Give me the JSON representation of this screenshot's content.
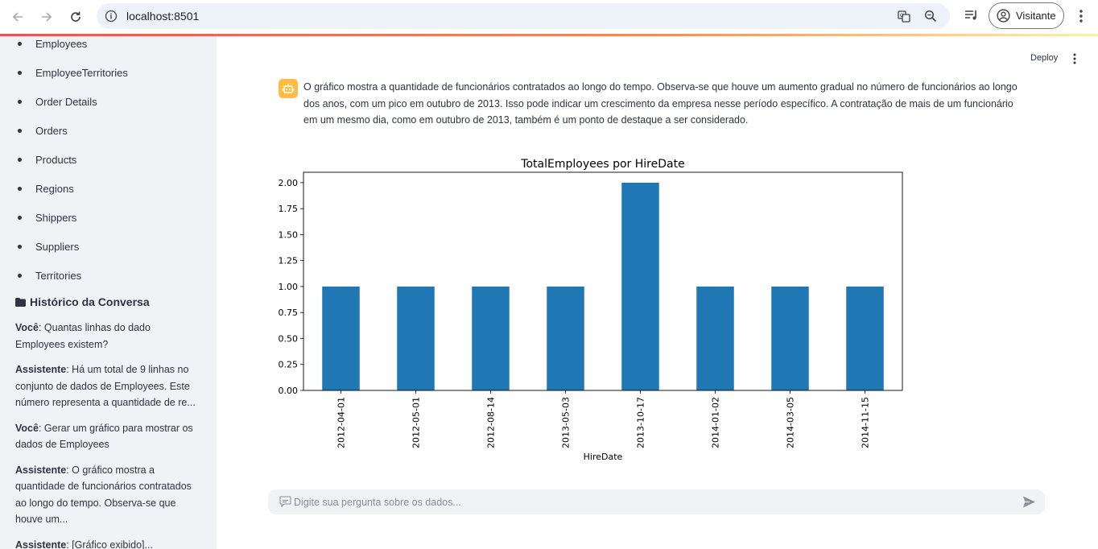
{
  "browser": {
    "url": "localhost:8501",
    "profile_label": "Visitante"
  },
  "sidebar": {
    "tables": [
      "Employees",
      "EmployeeTerritories",
      "Order Details",
      "Orders",
      "Products",
      "Regions",
      "Shippers",
      "Suppliers",
      "Territories"
    ],
    "history_title": "Histórico da Conversa",
    "history": [
      {
        "speaker": "Você",
        "text": ": Quantas linhas do dado Employees existem?"
      },
      {
        "speaker": "Assistente",
        "text": ": Há um total de 9 linhas no conjunto de dados de Employees. Este número representa a quantidade de re..."
      },
      {
        "speaker": "Você",
        "text": ": Gerar um gráfico para mostrar os dados de Employees"
      },
      {
        "speaker": "Assistente",
        "text": ": O gráfico mostra a quantidade de funcionários contratados ao longo do tempo. Observa-se que houve um..."
      },
      {
        "speaker": "Assistente",
        "text": ": [Gráfico exibido]..."
      }
    ]
  },
  "header": {
    "deploy_label": "Deploy"
  },
  "main": {
    "assistant_message": "O gráfico mostra a quantidade de funcionários contratados ao longo do tempo. Observa-se que houve um aumento gradual no número de funcionários ao longo dos anos, com um pico em outubro de 2013. Isso pode indicar um crescimento da empresa nesse período específico. A contratação de mais de um funcionário em um mesmo dia, como em outubro de 2013, também é um ponto de destaque a ser considerado.",
    "chat_placeholder": "Digite sua pergunta sobre os dados..."
  },
  "chart_data": {
    "type": "bar",
    "title": "TotalEmployees por HireDate",
    "xlabel": "HireDate",
    "ylabel": "",
    "categories": [
      "2012-04-01",
      "2012-05-01",
      "2012-08-14",
      "2013-05-03",
      "2013-10-17",
      "2014-01-02",
      "2014-03-05",
      "2014-11-15"
    ],
    "values": [
      1,
      1,
      1,
      1,
      2,
      1,
      1,
      1
    ],
    "ylim": [
      0,
      2.1
    ],
    "yticks": [
      "0.00",
      "0.25",
      "0.50",
      "0.75",
      "1.00",
      "1.25",
      "1.50",
      "1.75",
      "2.00"
    ],
    "bar_color": "#1f77b4",
    "grid": false
  },
  "colors": {
    "accent": "#ff4b4b",
    "bot_avatar": "#ffbd45",
    "sidebar_bg": "#f0f2f6"
  }
}
